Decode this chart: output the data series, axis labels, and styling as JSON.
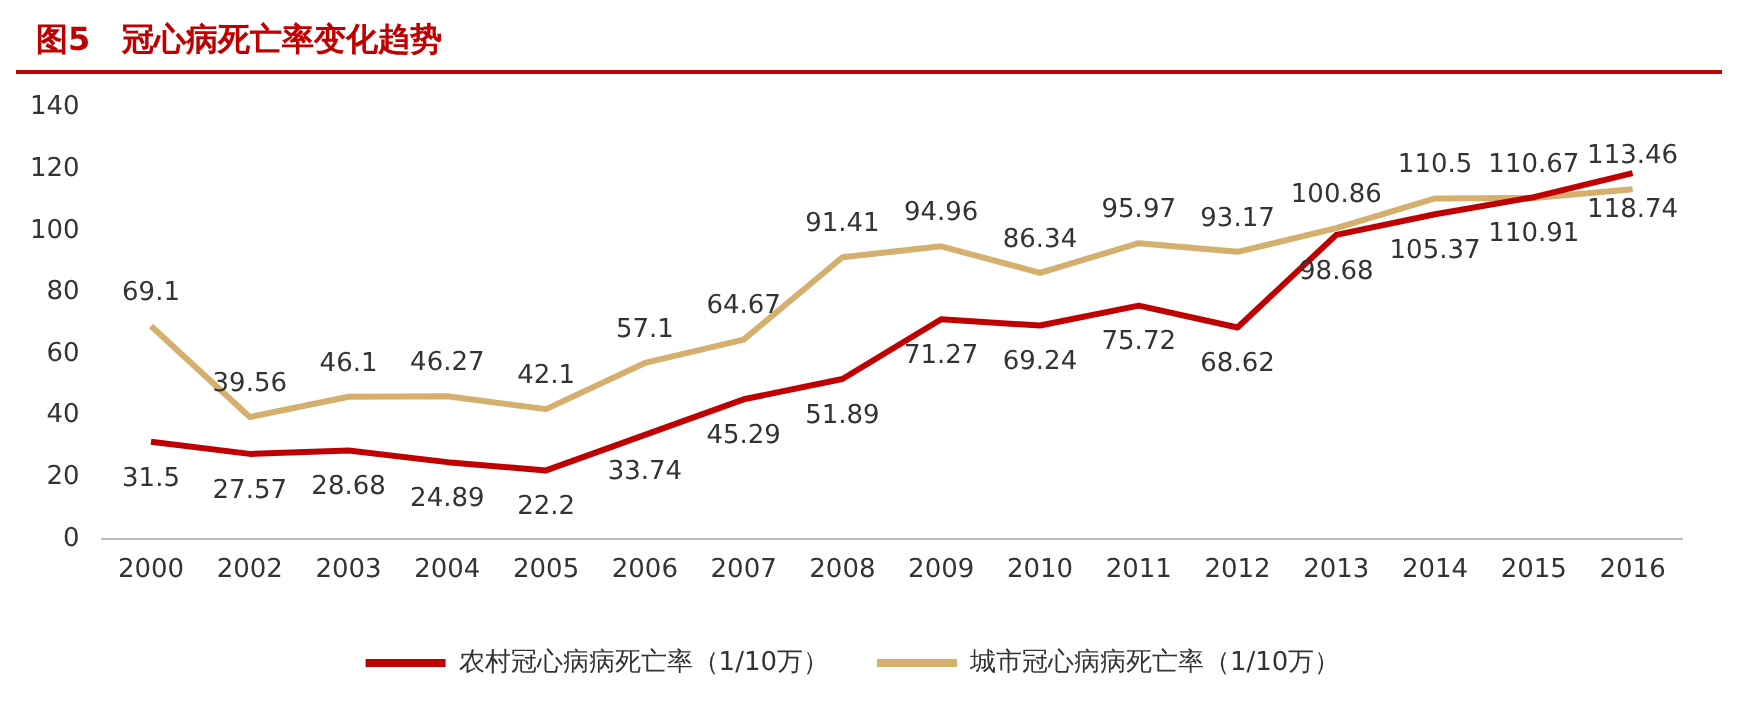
{
  "chart_data": {
    "type": "line",
    "title": "图5　冠心病死亡率变化趋势",
    "categories": [
      "2000",
      "2002",
      "2003",
      "2004",
      "2005",
      "2006",
      "2007",
      "2008",
      "2009",
      "2010",
      "2011",
      "2012",
      "2013",
      "2014",
      "2015",
      "2016"
    ],
    "series": [
      {
        "name": "农村冠心病病死亡率（1/10万）",
        "color": "#c00000",
        "values": [
          31.5,
          27.57,
          28.68,
          24.89,
          22.2,
          33.74,
          45.29,
          51.89,
          71.27,
          69.24,
          75.72,
          68.62,
          98.68,
          105.37,
          110.91,
          118.74
        ]
      },
      {
        "name": "城市冠心病病死亡率（1/10万）",
        "color": "#d4af6e",
        "values": [
          69.1,
          39.56,
          46.1,
          46.27,
          42.1,
          57.1,
          64.67,
          91.41,
          94.96,
          86.34,
          95.97,
          93.17,
          100.86,
          110.5,
          110.67,
          113.46
        ]
      }
    ],
    "ylim": [
      0,
      140
    ],
    "yticks": [
      0,
      20,
      40,
      60,
      80,
      100,
      120,
      140
    ],
    "grid": false,
    "legend": "bottom",
    "data_labels": true,
    "marker": "none",
    "line_style": "solid"
  }
}
